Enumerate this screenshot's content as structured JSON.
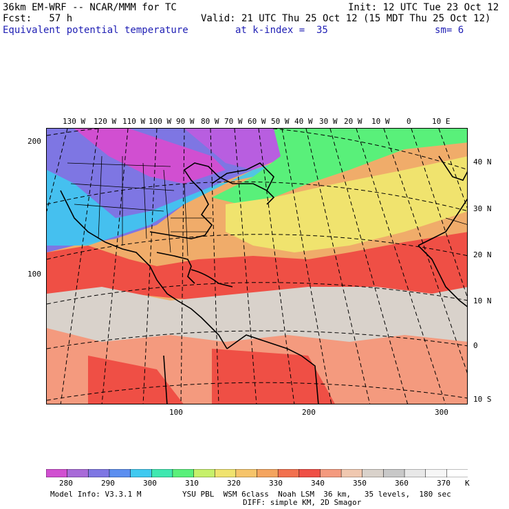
{
  "header": {
    "model_title": "36km EM-WRF -- NCAR/MMM for TC",
    "init": "Init: 12 UTC Tue 23 Oct 12",
    "forecast": "Fcst:   57 h",
    "valid": "Valid: 21 UTC Thu 25 Oct 12 (15 MDT Thu 25 Oct 12)",
    "field_name": "Equivalent potential temperature",
    "level": "at k-index =  35",
    "smoothing": "sm= 6"
  },
  "map": {
    "longitude_labels": [
      "130 W",
      "120 W",
      "110 W",
      "100 W",
      "90 W",
      "80 W",
      "70 W",
      "60 W",
      "50 W",
      "40 W",
      "30 W",
      "20 W",
      "10 W",
      "0",
      "10 E"
    ],
    "latitude_labels": [
      "40 N",
      "30 N",
      "20 N",
      "10 N",
      "0",
      "10 S"
    ],
    "grid_y_labels": [
      "200",
      "100"
    ],
    "grid_x_labels": [
      "100",
      "200",
      "300"
    ]
  },
  "colorbar": {
    "colors": [
      "#d14fd1",
      "#a86ad8",
      "#7e76e3",
      "#5b8ef0",
      "#3fc9f0",
      "#3ee8b0",
      "#59f07a",
      "#c6f06a",
      "#f0e36e",
      "#f6c46a",
      "#f4a45e",
      "#f2704e",
      "#ef4f45",
      "#f49a7e",
      "#f0c8b0",
      "#d9d2cb",
      "#c8c8c8",
      "#e8e8e8",
      "#f6f6f6",
      "#ffffff"
    ],
    "tick_labels": [
      "280",
      "290",
      "300",
      "310",
      "320",
      "330",
      "340",
      "350",
      "360",
      "370"
    ],
    "unit": "K"
  },
  "footer": {
    "model_info": "Model Info: V3.3.1 M",
    "physics": "YSU PBL  WSM 6class  Noah LSM  36 km,   35 levels,  180 sec",
    "diffusion": "DIFF: simple KM, 2D Smagor"
  }
}
